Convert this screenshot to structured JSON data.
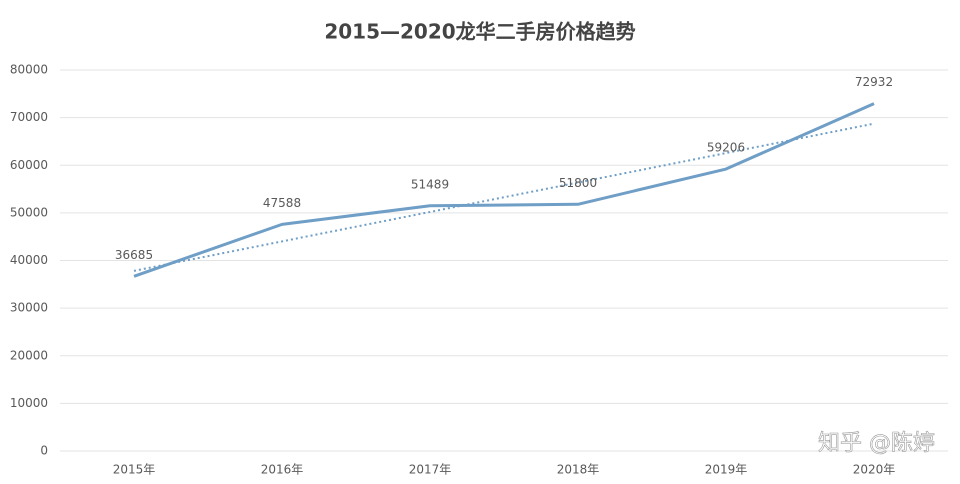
{
  "chart_data": {
    "type": "line",
    "title": "2015—2020龙华二手房价格趋势",
    "categories": [
      "2015年",
      "2016年",
      "2017年",
      "2018年",
      "2019年",
      "2020年"
    ],
    "values": [
      36685,
      47588,
      51489,
      51800,
      59206,
      72932
    ],
    "color": "#6f9ec6",
    "ylim": [
      0,
      80000
    ],
    "yticks": [
      0,
      10000,
      20000,
      30000,
      40000,
      50000,
      60000,
      70000,
      80000
    ],
    "grid": true,
    "data_labels": true,
    "trendline": "linear"
  },
  "watermark": "知乎 @陈婷"
}
